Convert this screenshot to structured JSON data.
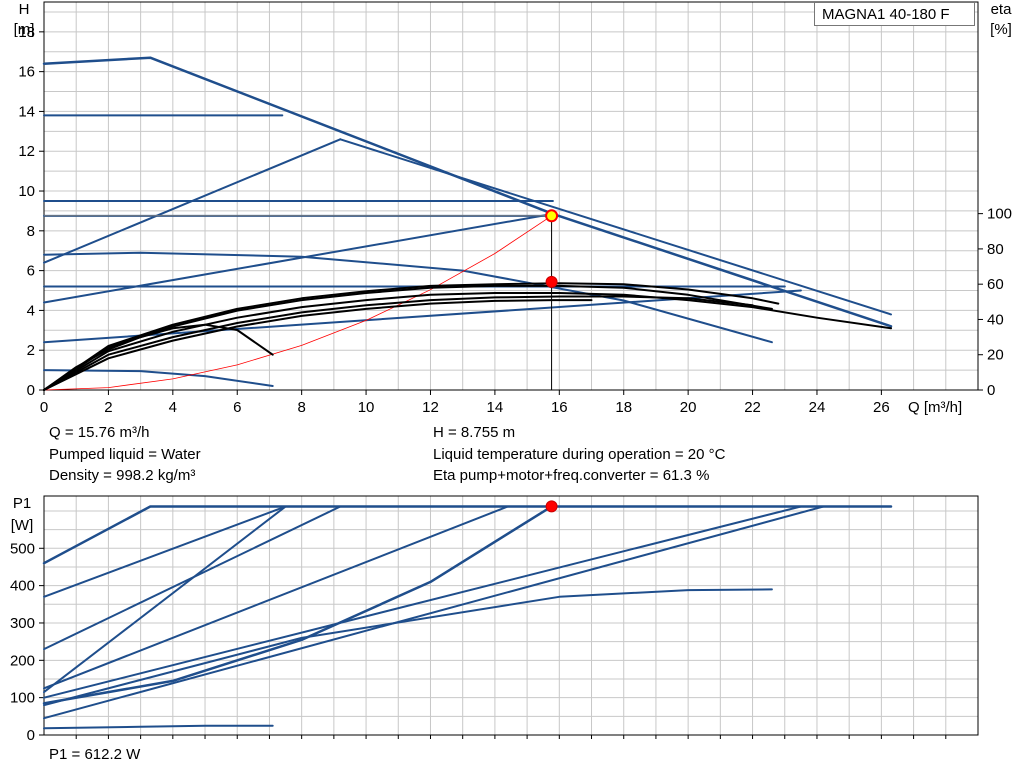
{
  "chart_data": [
    {
      "type": "line",
      "title": "MAGNA1 40-180 F",
      "ylabel": "H",
      "yunit": "[m]",
      "y2label": "eta",
      "y2unit": "[%]",
      "xlabel": "Q [m³/h]",
      "xlim": [
        0,
        29
      ],
      "ylim": [
        0,
        19.5
      ],
      "y2lim": [
        0,
        220
      ],
      "grid": true,
      "x_ticks": [
        0,
        2,
        4,
        6,
        8,
        10,
        12,
        14,
        16,
        18,
        20,
        22,
        24,
        26
      ],
      "y_ticks": [
        0,
        2,
        4,
        6,
        8,
        10,
        12,
        14,
        16,
        18
      ],
      "y2_ticks": [
        0,
        20,
        40,
        60,
        80,
        100
      ],
      "head_curves": [
        {
          "points": [
            [
              0,
              16.4
            ],
            [
              3.3,
              16.7
            ],
            [
              15.8,
              8.85
            ],
            [
              26.3,
              3.2
            ]
          ]
        },
        {
          "points": [
            [
              0,
              13.8
            ],
            [
              7.4,
              13.8
            ]
          ]
        },
        {
          "points": [
            [
              0,
              9.5
            ],
            [
              15.8,
              9.5
            ]
          ]
        },
        {
          "points": [
            [
              0,
              8.75
            ],
            [
              15.8,
              8.75
            ]
          ]
        },
        {
          "points": [
            [
              0,
              6.4
            ],
            [
              9.2,
              12.6
            ]
          ]
        },
        {
          "points": [
            [
              0,
              4.4
            ],
            [
              15.8,
              8.85
            ]
          ]
        },
        {
          "points": [
            [
              0,
              5.2
            ],
            [
              23,
              5.2
            ]
          ]
        },
        {
          "points": [
            [
              0,
              2.4
            ],
            [
              23.5,
              5.0
            ]
          ]
        },
        {
          "points": [
            [
              0,
              6.8
            ],
            [
              3,
              6.9
            ],
            [
              8,
              6.7
            ],
            [
              13,
              6.0
            ],
            [
              18,
              4.5
            ],
            [
              22.6,
              2.4
            ]
          ]
        },
        {
          "points": [
            [
              0,
              1.0
            ],
            [
              3,
              0.95
            ],
            [
              5,
              0.7
            ],
            [
              7.1,
              0.2
            ]
          ]
        },
        {
          "points": [
            [
              9.2,
              12.6
            ],
            [
              26.3,
              3.8
            ]
          ]
        }
      ],
      "eta_curves": [
        {
          "points": [
            [
              0,
              0
            ],
            [
              2,
              22
            ],
            [
              4,
              33
            ],
            [
              6,
              41
            ],
            [
              8,
              47
            ],
            [
              10,
              51
            ],
            [
              12,
              54
            ],
            [
              14,
              55
            ],
            [
              16,
              55
            ],
            [
              18,
              54
            ],
            [
              20,
              51
            ],
            [
              22,
              47
            ],
            [
              24,
              41
            ],
            [
              26.3,
              35
            ]
          ]
        },
        {
          "points": [
            [
              0,
              0
            ],
            [
              2,
              25
            ],
            [
              4,
              37
            ],
            [
              6,
              46
            ],
            [
              8,
              52
            ],
            [
              10,
              56
            ],
            [
              12,
              59
            ],
            [
              14,
              60
            ],
            [
              16,
              60.5
            ],
            [
              18,
              60
            ],
            [
              20,
              57
            ],
            [
              22,
              52
            ],
            [
              22.8,
              49
            ]
          ]
        },
        {
          "points": [
            [
              0,
              0
            ],
            [
              2,
              24
            ],
            [
              4,
              36
            ],
            [
              6,
              45
            ],
            [
              8,
              51
            ],
            [
              10,
              55
            ],
            [
              12,
              58
            ],
            [
              14,
              59
            ],
            [
              16,
              59
            ],
            [
              18,
              58
            ],
            [
              20,
              54
            ],
            [
              22.6,
              46
            ]
          ]
        },
        {
          "points": [
            [
              0,
              0
            ],
            [
              1,
              13
            ],
            [
              2,
              23
            ],
            [
              3,
              30
            ],
            [
              4,
              35
            ],
            [
              5,
              37
            ],
            [
              6,
              34
            ],
            [
              7.1,
              20
            ]
          ]
        },
        {
          "points": [
            [
              0,
              0
            ],
            [
              2,
              20
            ],
            [
              4,
              30
            ],
            [
              6,
              38
            ],
            [
              8,
              44
            ],
            [
              10,
              48
            ],
            [
              12,
              51
            ],
            [
              14,
              52.5
            ],
            [
              16,
              53
            ],
            [
              18,
              53
            ],
            [
              20,
              52
            ],
            [
              22,
              48
            ]
          ]
        },
        {
          "points": [
            [
              0,
              0
            ],
            [
              2,
              18
            ],
            [
              4,
              28
            ],
            [
              6,
              36
            ],
            [
              8,
              42
            ],
            [
              10,
              46
            ],
            [
              12,
              49
            ],
            [
              14,
              50.5
            ],
            [
              15.8,
              51
            ],
            [
              17,
              51
            ]
          ]
        }
      ],
      "system_curve": {
        "points": [
          [
            0,
            0
          ],
          [
            2,
            0.12
          ],
          [
            4,
            0.56
          ],
          [
            6,
            1.26
          ],
          [
            8,
            2.24
          ],
          [
            10,
            3.5
          ],
          [
            12,
            5.04
          ],
          [
            14,
            6.86
          ],
          [
            15.76,
            8.755
          ]
        ]
      },
      "duty_point": {
        "x": 15.76,
        "y": 8.755
      },
      "eta_point": {
        "x": 15.76,
        "eta": 61.3
      }
    },
    {
      "type": "line",
      "ylabel": "P1",
      "yunit": "[W]",
      "xlim": [
        0,
        29
      ],
      "ylim": [
        0,
        640
      ],
      "grid": true,
      "y_ticks": [
        0,
        100,
        200,
        300,
        400,
        500
      ],
      "power_curves": [
        {
          "points": [
            [
              0,
              460
            ],
            [
              3.3,
              612
            ],
            [
              26.3,
              612
            ]
          ]
        },
        {
          "points": [
            [
              0,
              370
            ],
            [
              7.5,
              612
            ]
          ]
        },
        {
          "points": [
            [
              0,
              230
            ],
            [
              9.2,
              612
            ]
          ]
        },
        {
          "points": [
            [
              0,
              125
            ],
            [
              14.4,
              612
            ]
          ]
        },
        {
          "points": [
            [
              0,
              115
            ],
            [
              7.5,
              612
            ]
          ]
        },
        {
          "points": [
            [
              0,
              85
            ],
            [
              4,
              145
            ],
            [
              8,
              255
            ],
            [
              12,
              410
            ],
            [
              15.76,
              612
            ]
          ]
        },
        {
          "points": [
            [
              0,
              100
            ],
            [
              23.5,
              612
            ]
          ]
        },
        {
          "points": [
            [
              0,
              45
            ],
            [
              24.2,
              612
            ]
          ]
        },
        {
          "points": [
            [
              0,
              80
            ],
            [
              8,
              260
            ],
            [
              16,
              370
            ],
            [
              20,
              388
            ],
            [
              22.6,
              390
            ]
          ]
        },
        {
          "points": [
            [
              0,
              18
            ],
            [
              3,
              22
            ],
            [
              5,
              25
            ],
            [
              7.1,
              25
            ]
          ]
        }
      ],
      "duty_point": {
        "x": 15.76,
        "y": 612.2
      }
    }
  ],
  "info": {
    "q": "Q = 15.76 m³/h",
    "h": "H = 8.755 m",
    "liquid": "Pumped liquid = Water",
    "temp": "Liquid temperature during operation = 20 °C",
    "density": "Density = 998.2 kg/m³",
    "eta": "Eta pump+motor+freq.converter = 61.3 %",
    "p1": "P1 = 612.2 W"
  },
  "colors": {
    "curve": "#1f4e8c",
    "eta": "#000000",
    "system": "#ff0000",
    "grid": "#c8c8c8",
    "duty_fill": "#ffff00"
  }
}
